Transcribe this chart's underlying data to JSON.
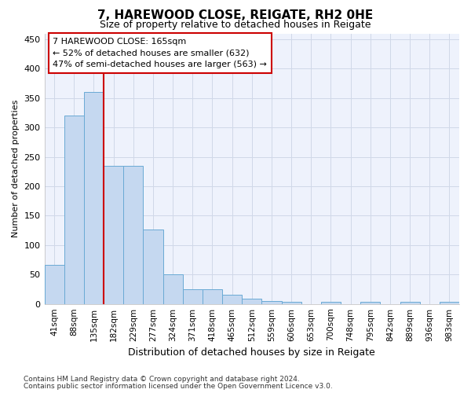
{
  "title1": "7, HAREWOOD CLOSE, REIGATE, RH2 0HE",
  "title2": "Size of property relative to detached houses in Reigate",
  "xlabel": "Distribution of detached houses by size in Reigate",
  "ylabel": "Number of detached properties",
  "footnote1": "Contains HM Land Registry data © Crown copyright and database right 2024.",
  "footnote2": "Contains public sector information licensed under the Open Government Licence v3.0.",
  "annotation_line1": "7 HAREWOOD CLOSE: 165sqm",
  "annotation_line2": "← 52% of detached houses are smaller (632)",
  "annotation_line3": "47% of semi-detached houses are larger (563) →",
  "bar_labels": [
    "41sqm",
    "88sqm",
    "135sqm",
    "182sqm",
    "229sqm",
    "277sqm",
    "324sqm",
    "371sqm",
    "418sqm",
    "465sqm",
    "512sqm",
    "559sqm",
    "606sqm",
    "653sqm",
    "700sqm",
    "748sqm",
    "795sqm",
    "842sqm",
    "889sqm",
    "936sqm",
    "983sqm"
  ],
  "bar_values": [
    67,
    320,
    360,
    235,
    235,
    126,
    50,
    25,
    25,
    15,
    9,
    5,
    3,
    0,
    3,
    0,
    3,
    0,
    3,
    0,
    3
  ],
  "bar_color": "#c5d8f0",
  "bar_edge_color": "#6aaad4",
  "vline_color": "#cc0000",
  "vline_bin_index": 3,
  "ylim": [
    0,
    460
  ],
  "yticks": [
    0,
    50,
    100,
    150,
    200,
    250,
    300,
    350,
    400,
    450
  ],
  "grid_color": "#d0d8e8",
  "bg_color": "#ffffff",
  "plot_bg_color": "#eef2fc",
  "annotation_box_color": "white",
  "annotation_box_edge": "#cc0000",
  "title1_fontsize": 11,
  "title2_fontsize": 9,
  "xlabel_fontsize": 9,
  "ylabel_fontsize": 8,
  "tick_fontsize": 8,
  "xtick_fontsize": 7.5,
  "annot_fontsize": 8,
  "footnote_fontsize": 6.5
}
